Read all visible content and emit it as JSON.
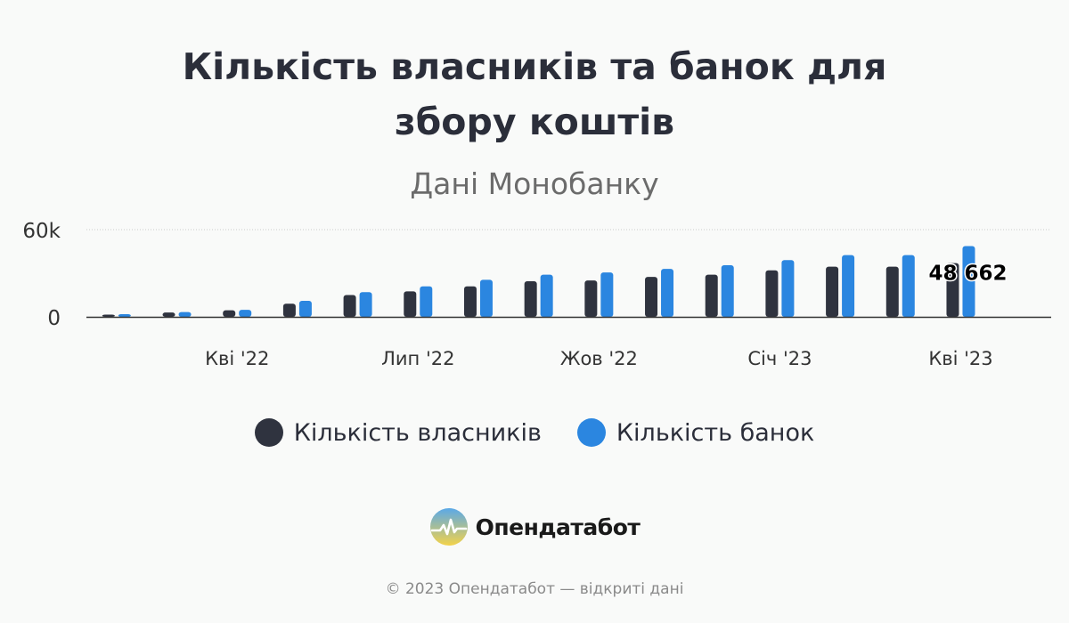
{
  "footer": {
    "brand": "Опендатабот",
    "copyright": "© 2023 Опендатабот — відкриті дані"
  },
  "colors": {
    "owners": "#2f333f",
    "banks": "#2b86e0",
    "axis": "#333333",
    "grid": "#cccccc",
    "tick_text": "#333333"
  },
  "chart_data": {
    "type": "bar",
    "title": "Кількість власників та банок для збору коштів",
    "subtitle": "Дані Монобанку",
    "x": [
      "2022-02",
      "2022-03",
      "2022-04",
      "2022-05",
      "2022-06",
      "2022-07",
      "2022-08",
      "2022-09",
      "2022-10",
      "2022-11",
      "2022-12",
      "2023-01",
      "2023-02",
      "2023-03",
      "2023-04",
      "2023-05"
    ],
    "x_tick_labels": [
      {
        "category": "2022-04",
        "label": "Кві '22"
      },
      {
        "category": "2022-07",
        "label": "Лип '22"
      },
      {
        "category": "2022-10",
        "label": "Жов '22"
      },
      {
        "category": "2023-01",
        "label": "Січ '23"
      },
      {
        "category": "2023-04",
        "label": "Кві '23"
      }
    ],
    "series": [
      {
        "name": "Кількість власників",
        "values": [
          1500,
          3000,
          4500,
          9000,
          15000,
          17500,
          21000,
          24500,
          25000,
          27500,
          29000,
          32000,
          34500,
          34500,
          37000,
          null
        ]
      },
      {
        "name": "Кількість банок",
        "values": [
          1800,
          3300,
          4800,
          11000,
          17000,
          21000,
          25500,
          29000,
          30500,
          33000,
          35500,
          39000,
          42500,
          42500,
          48662,
          null
        ]
      }
    ],
    "y_ticks": [
      {
        "value": 0,
        "label": "0"
      },
      {
        "value": 60000,
        "label": "60k"
      }
    ],
    "ylim": [
      0,
      60000
    ],
    "annotation": {
      "series": 1,
      "index": 14,
      "label": "48 662"
    },
    "legend_position": "bottom",
    "grid": "horizontal dotted"
  }
}
